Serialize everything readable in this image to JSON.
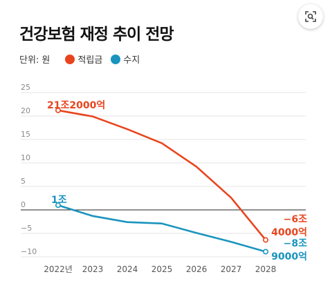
{
  "lens_button": {
    "icon": "lens-search-icon"
  },
  "chart_data": {
    "type": "line",
    "title": "건강보험 재정 추이 전망",
    "unit_label": "단위: 원",
    "x": [
      "2022년",
      "2023",
      "2024",
      "2025",
      "2026",
      "2027",
      "2028"
    ],
    "ylim": [
      -10,
      25
    ],
    "yticks": [
      "25",
      "20",
      "15",
      "10",
      "5",
      "0",
      "−5",
      "−10"
    ],
    "grid": true,
    "legend_position": "top-left",
    "series": [
      {
        "name": "적립금",
        "color": "#E8451E",
        "values": [
          21.2,
          19.9,
          17.2,
          14.2,
          9.2,
          2.6,
          -6.4
        ],
        "labels": [
          {
            "index": 0,
            "lines": [
              "21조2000억"
            ]
          },
          {
            "index": 6,
            "lines": [
              "−6조",
              "4000억"
            ]
          }
        ]
      },
      {
        "name": "수지",
        "color": "#1A94BE",
        "values": [
          1.0,
          -1.3,
          -2.6,
          -2.9,
          -4.9,
          -6.8,
          -8.9
        ],
        "labels": [
          {
            "index": 0,
            "lines": [
              "1조"
            ]
          },
          {
            "index": 6,
            "lines": [
              "−8조",
              "9000억"
            ]
          }
        ]
      }
    ]
  }
}
